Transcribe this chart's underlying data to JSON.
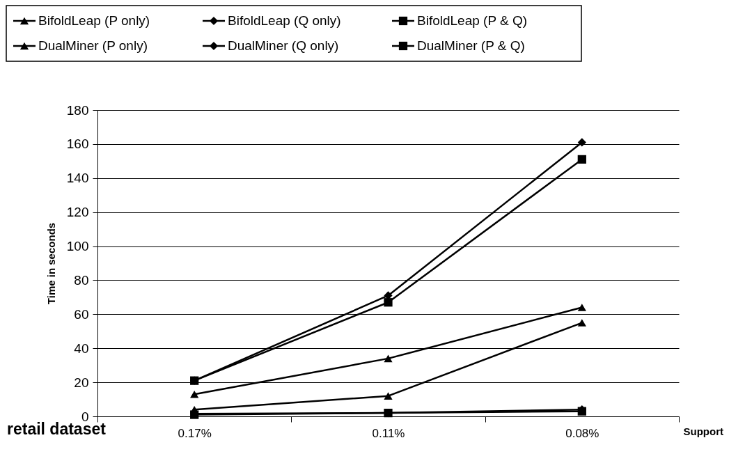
{
  "chart_data": {
    "type": "line",
    "ylabel": "Time in seconds",
    "xlabel": "Support",
    "annotations": [
      "retail dataset"
    ],
    "categories": [
      "0.17%",
      "0.11%",
      "0.08%"
    ],
    "ylim": [
      0,
      180
    ],
    "yticks": [
      0,
      20,
      40,
      60,
      80,
      100,
      120,
      140,
      160,
      180
    ],
    "grid": "y",
    "legend": "top",
    "line_style": "solid",
    "series": [
      {
        "name": "BifoldLeap (P only)",
        "color": "#000000",
        "marker": "triangle",
        "values": [
          4,
          12,
          55
        ]
      },
      {
        "name": "BifoldLeap (Q only)",
        "color": "#000000",
        "marker": "diamond",
        "values": [
          1.5,
          2,
          4
        ]
      },
      {
        "name": "BifoldLeap (P & Q)",
        "color": "#000000",
        "marker": "square",
        "values": [
          1,
          2,
          3
        ]
      },
      {
        "name": "DualMiner (P only)",
        "color": "#000000",
        "marker": "triangle",
        "values": [
          13,
          34,
          64
        ]
      },
      {
        "name": "DualMiner (Q only)",
        "color": "#000000",
        "marker": "diamond",
        "values": [
          21,
          71,
          161
        ]
      },
      {
        "name": "DualMiner (P & Q)",
        "color": "#000000",
        "marker": "square",
        "values": [
          21,
          67,
          151
        ]
      }
    ]
  }
}
